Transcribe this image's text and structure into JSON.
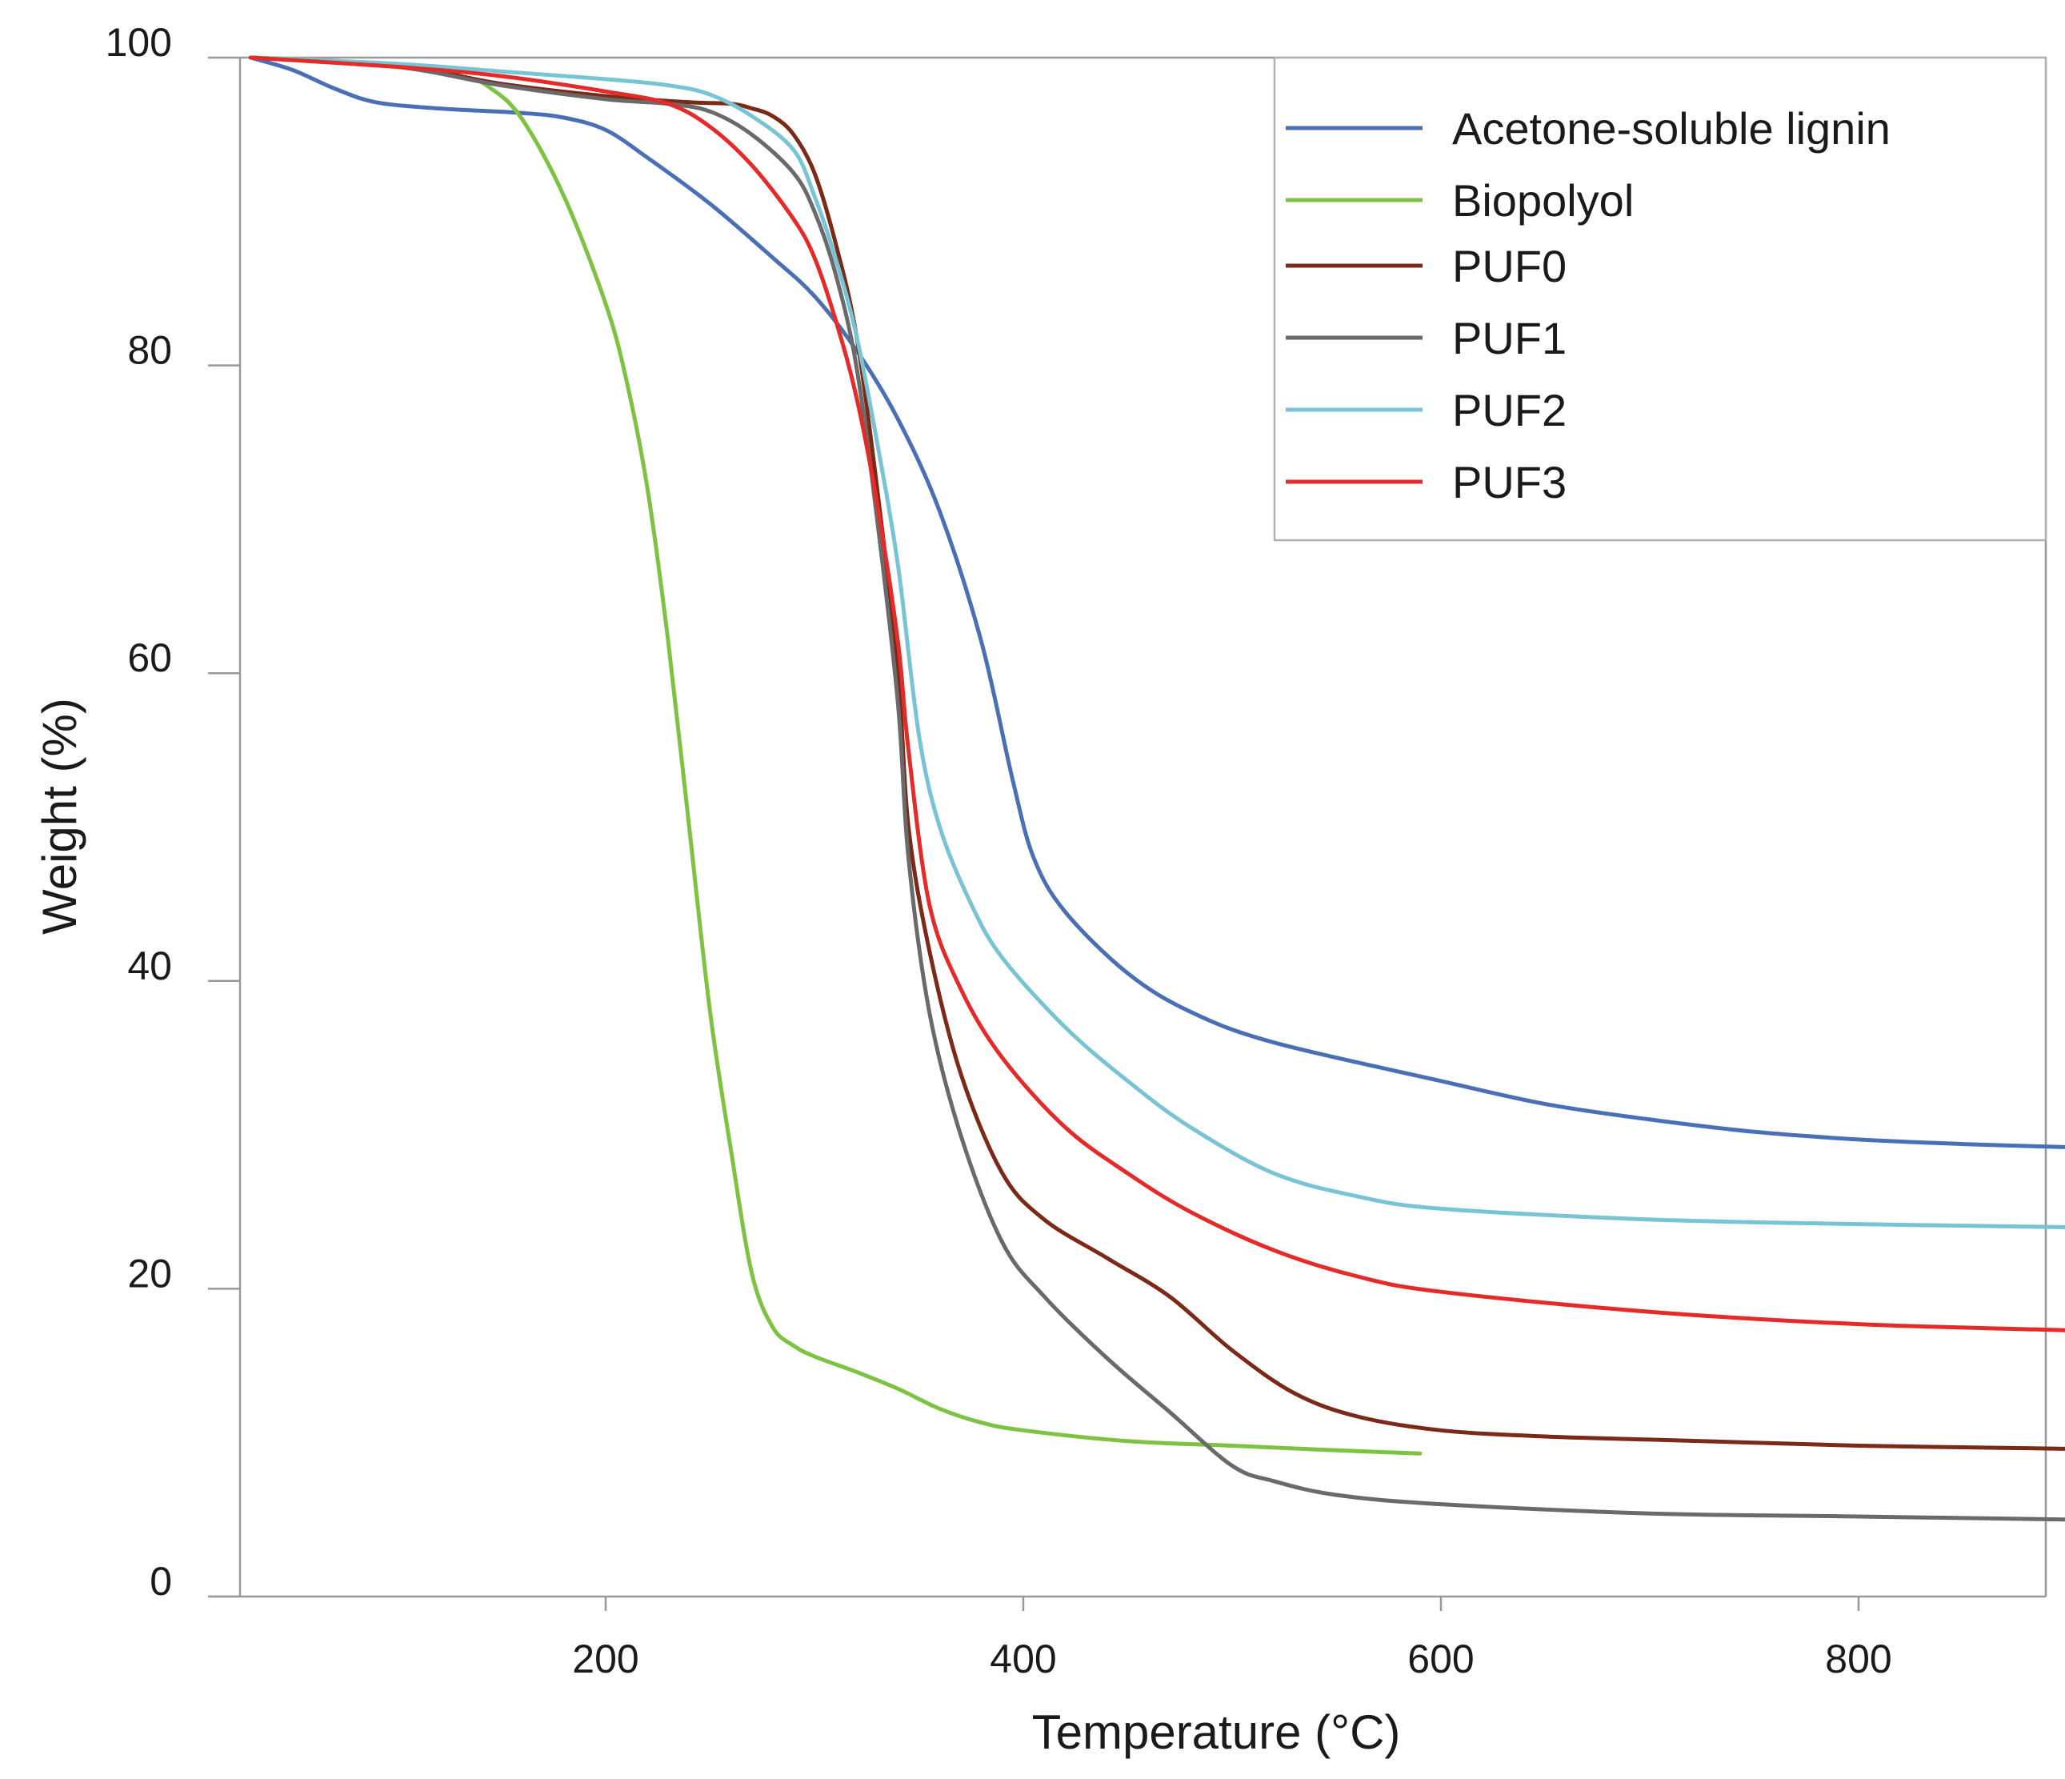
{
  "chart_data": {
    "type": "line",
    "title": "",
    "xlabel": "Temperature (°C)",
    "ylabel": "Weight (%)",
    "xlim": [
      30,
      900
    ],
    "ylim": [
      0,
      100
    ],
    "xticks": [
      200,
      400,
      600,
      800
    ],
    "yticks": [
      0,
      20,
      40,
      60,
      80,
      100
    ],
    "grid": false,
    "legend_position": "top-right",
    "series": [
      {
        "name": "Acetone-soluble lignin",
        "color": "#4a6fb5",
        "points": [
          [
            30,
            100
          ],
          [
            50,
            99.2
          ],
          [
            70,
            98
          ],
          [
            90,
            97.1
          ],
          [
            120,
            96.7
          ],
          [
            160,
            96.4
          ],
          [
            180,
            96.1
          ],
          [
            200,
            95.3
          ],
          [
            220,
            93.5
          ],
          [
            250,
            90.5
          ],
          [
            280,
            87
          ],
          [
            300,
            84.5
          ],
          [
            320,
            81
          ],
          [
            340,
            76.5
          ],
          [
            360,
            70.5
          ],
          [
            380,
            62
          ],
          [
            395,
            53
          ],
          [
            405,
            48
          ],
          [
            420,
            44.5
          ],
          [
            450,
            40.5
          ],
          [
            480,
            38
          ],
          [
            520,
            36
          ],
          [
            600,
            33.5
          ],
          [
            650,
            32
          ],
          [
            700,
            31
          ],
          [
            750,
            30.2
          ],
          [
            800,
            29.7
          ],
          [
            850,
            29.4
          ],
          [
            900,
            29.2
          ]
        ]
      },
      {
        "name": "Biopolyol",
        "color": "#7dc242",
        "points": [
          [
            30,
            100
          ],
          [
            80,
            99.7
          ],
          [
            130,
            98.8
          ],
          [
            145,
            98
          ],
          [
            160,
            96
          ],
          [
            180,
            91
          ],
          [
            200,
            84
          ],
          [
            210,
            79
          ],
          [
            220,
            72
          ],
          [
            230,
            62
          ],
          [
            240,
            50
          ],
          [
            250,
            38
          ],
          [
            260,
            29
          ],
          [
            270,
            21
          ],
          [
            280,
            17.5
          ],
          [
            290,
            16.3
          ],
          [
            300,
            15.6
          ],
          [
            320,
            14.6
          ],
          [
            340,
            13.5
          ],
          [
            360,
            12.2
          ],
          [
            380,
            11.3
          ],
          [
            400,
            10.8
          ],
          [
            450,
            10.1
          ],
          [
            500,
            9.8
          ],
          [
            550,
            9.5
          ],
          [
            590,
            9.3
          ]
        ]
      },
      {
        "name": "PUF0",
        "color": "#7b2a18",
        "points": [
          [
            30,
            100
          ],
          [
            100,
            99.5
          ],
          [
            150,
            98.3
          ],
          [
            200,
            97.5
          ],
          [
            240,
            97.1
          ],
          [
            260,
            97
          ],
          [
            270,
            96.7
          ],
          [
            280,
            96.2
          ],
          [
            290,
            95
          ],
          [
            300,
            92.5
          ],
          [
            310,
            88
          ],
          [
            320,
            82
          ],
          [
            330,
            72
          ],
          [
            340,
            60
          ],
          [
            345,
            50
          ],
          [
            355,
            42
          ],
          [
            370,
            34
          ],
          [
            390,
            27.5
          ],
          [
            410,
            24.5
          ],
          [
            440,
            22
          ],
          [
            470,
            19.5
          ],
          [
            500,
            16
          ],
          [
            530,
            13.2
          ],
          [
            560,
            11.7
          ],
          [
            600,
            10.8
          ],
          [
            650,
            10.4
          ],
          [
            700,
            10.2
          ],
          [
            750,
            10
          ],
          [
            800,
            9.8
          ],
          [
            850,
            9.7
          ],
          [
            900,
            9.6
          ]
        ]
      },
      {
        "name": "PUF1",
        "color": "#6a6a6a",
        "points": [
          [
            30,
            100
          ],
          [
            100,
            99.4
          ],
          [
            150,
            98.2
          ],
          [
            200,
            97.3
          ],
          [
            230,
            97
          ],
          [
            250,
            96.5
          ],
          [
            270,
            95
          ],
          [
            290,
            92.5
          ],
          [
            300,
            90
          ],
          [
            310,
            86
          ],
          [
            320,
            80
          ],
          [
            330,
            70
          ],
          [
            340,
            58
          ],
          [
            345,
            48
          ],
          [
            355,
            38
          ],
          [
            370,
            30
          ],
          [
            390,
            23
          ],
          [
            410,
            19.5
          ],
          [
            440,
            15.5
          ],
          [
            470,
            12
          ],
          [
            500,
            8.5
          ],
          [
            520,
            7.5
          ],
          [
            550,
            6.6
          ],
          [
            600,
            6
          ],
          [
            700,
            5.4
          ],
          [
            800,
            5.2
          ],
          [
            900,
            5
          ]
        ]
      },
      {
        "name": "PUF2",
        "color": "#78c4d4",
        "points": [
          [
            30,
            100
          ],
          [
            100,
            99.6
          ],
          [
            150,
            99.1
          ],
          [
            200,
            98.6
          ],
          [
            230,
            98.2
          ],
          [
            250,
            97.6
          ],
          [
            270,
            96.2
          ],
          [
            290,
            94
          ],
          [
            300,
            91
          ],
          [
            310,
            87
          ],
          [
            320,
            82
          ],
          [
            330,
            75
          ],
          [
            340,
            67
          ],
          [
            350,
            56
          ],
          [
            360,
            50
          ],
          [
            375,
            45
          ],
          [
            390,
            41.5
          ],
          [
            420,
            37
          ],
          [
            450,
            33.5
          ],
          [
            480,
            30.5
          ],
          [
            520,
            27.5
          ],
          [
            560,
            26
          ],
          [
            600,
            25.2
          ],
          [
            700,
            24.5
          ],
          [
            800,
            24.2
          ],
          [
            900,
            24
          ]
        ]
      },
      {
        "name": "PUF3",
        "color": "#e52a2a",
        "points": [
          [
            30,
            100
          ],
          [
            100,
            99.4
          ],
          [
            150,
            98.8
          ],
          [
            200,
            97.8
          ],
          [
            230,
            97
          ],
          [
            250,
            95.5
          ],
          [
            270,
            93
          ],
          [
            290,
            89.5
          ],
          [
            300,
            87
          ],
          [
            310,
            83
          ],
          [
            320,
            78
          ],
          [
            330,
            71
          ],
          [
            340,
            62
          ],
          [
            345,
            55
          ],
          [
            355,
            45
          ],
          [
            370,
            39.5
          ],
          [
            390,
            35
          ],
          [
            420,
            30.5
          ],
          [
            450,
            27.5
          ],
          [
            480,
            25
          ],
          [
            520,
            22.5
          ],
          [
            560,
            20.8
          ],
          [
            600,
            19.8
          ],
          [
            700,
            18.5
          ],
          [
            800,
            17.7
          ],
          [
            900,
            17.3
          ]
        ]
      }
    ]
  }
}
